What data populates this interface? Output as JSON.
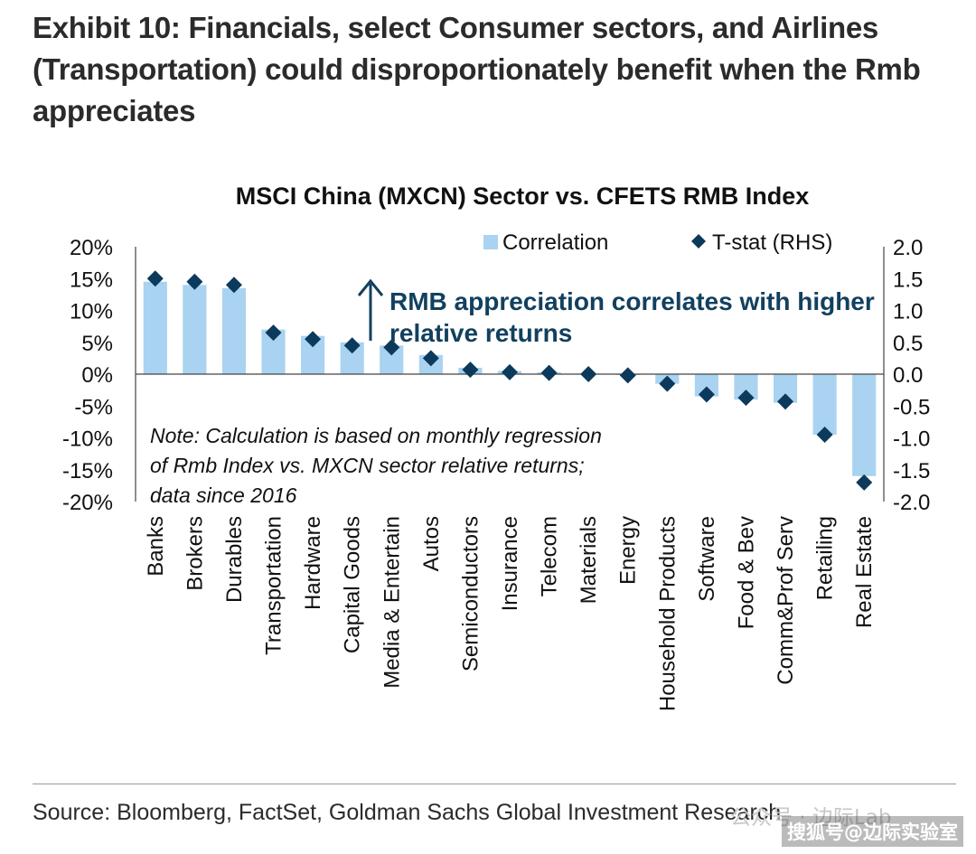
{
  "exhibit_title": "Exhibit 10: Financials, select Consumer sectors, and Airlines (Transportation) could disproportionately benefit when the Rmb appreciates",
  "source": "Source: Bloomberg, FactSet, Goldman Sachs Global Investment Research",
  "watermark": "公众号 · 边际Lab",
  "watermark_2": "搜狐号@边际实验室",
  "colors": {
    "bar": "#a9d3f0",
    "marker": "#0c3a5c",
    "annotation": "#12405f",
    "axis": "#444444",
    "text": "#111111"
  },
  "chart_data": {
    "type": "bar",
    "title": "MSCI China (MXCN) Sector vs. CFETS RMB Index",
    "categories": [
      "Banks",
      "Brokers",
      "Durables",
      "Transportation",
      "Hardware",
      "Capital Goods",
      "Media & Entertain",
      "Autos",
      "Semiconductors",
      "Insurance",
      "Telecom",
      "Materials",
      "Energy",
      "Household Products",
      "Software",
      "Food & Bev",
      "Comm&Prof Serv",
      "Retailing",
      "Real Estate"
    ],
    "series": [
      {
        "name": "Correlation",
        "axis": "left",
        "kind": "bar",
        "values": [
          14.5,
          14.0,
          13.5,
          7.0,
          6.0,
          5.0,
          4.5,
          3.0,
          1.0,
          0.5,
          0.3,
          0.1,
          0.0,
          -1.5,
          -3.5,
          -4.0,
          -4.5,
          -9.5,
          -16.0
        ]
      },
      {
        "name": "T-stat (RHS)",
        "axis": "right",
        "kind": "marker",
        "values": [
          1.5,
          1.45,
          1.4,
          0.65,
          0.55,
          0.45,
          0.42,
          0.25,
          0.07,
          0.03,
          0.02,
          0.0,
          -0.02,
          -0.15,
          -0.32,
          -0.37,
          -0.43,
          -0.95,
          -1.7
        ]
      }
    ],
    "y_left": {
      "min": -20,
      "max": 20,
      "ticks": [
        -20,
        -15,
        -10,
        -5,
        0,
        5,
        10,
        15,
        20
      ],
      "tick_labels": [
        "-20%",
        "-15%",
        "-10%",
        "-5%",
        "0%",
        "5%",
        "10%",
        "15%",
        "20%"
      ]
    },
    "y_right": {
      "min": -2.0,
      "max": 2.0,
      "ticks": [
        -2.0,
        -1.5,
        -1.0,
        -0.5,
        0.0,
        0.5,
        1.0,
        1.5,
        2.0
      ],
      "tick_labels": [
        "-2.0",
        "-1.5",
        "-1.0",
        "-0.5",
        "0.0",
        "0.5",
        "1.0",
        "1.5",
        "2.0"
      ]
    },
    "annotation": [
      "RMB appreciation correlates with higher",
      "relative returns"
    ],
    "note": [
      "Note: Calculation is based on monthly regression",
      "of Rmb Index vs. MXCN sector relative returns;",
      "data since 2016"
    ],
    "legend_position": "top-right",
    "grid": false
  }
}
